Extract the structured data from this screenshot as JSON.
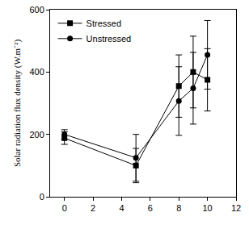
{
  "chart_data": {
    "type": "line",
    "y_label": "Solar radiation flux density (W.m⁻²)",
    "xlim": [
      -1,
      12
    ],
    "xticks": [
      0,
      2,
      4,
      6,
      8,
      10,
      12
    ],
    "ylim": [
      0,
      600
    ],
    "yticks": [
      0,
      200,
      400,
      600
    ],
    "legend": "top left",
    "grid": false,
    "series": [
      {
        "name": "Stressed",
        "color": "#000000",
        "marker": "square",
        "x": [
          0,
          5,
          8,
          9,
          10
        ],
        "values": [
          188,
          100,
          355,
          400,
          375
        ],
        "errors": [
          20,
          55,
          100,
          115,
          100
        ]
      },
      {
        "name": "Unstressed",
        "color": "#000000",
        "marker": "circle",
        "x": [
          0,
          5,
          8,
          9,
          10
        ],
        "values": [
          200,
          125,
          307,
          348,
          455
        ],
        "errors": [
          15,
          75,
          110,
          115,
          110
        ]
      }
    ]
  }
}
